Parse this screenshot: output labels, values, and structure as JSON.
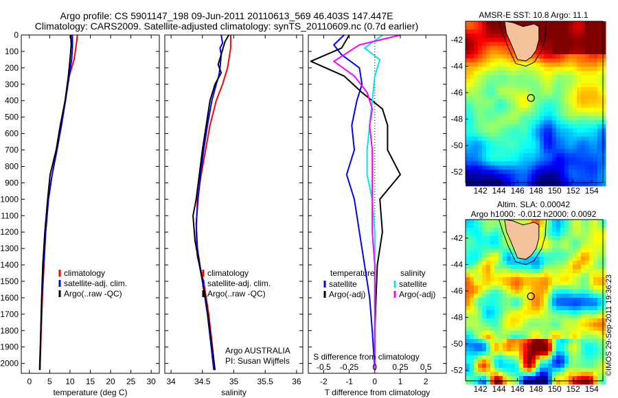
{
  "title_line1": "Argo profile: CS 5901147_198 09-Jun-2011 20110613_569 46.403S 147.447E",
  "title_line2": "Climatology: CARS2009. Satellite-adjusted climatology: synTS_20110609.nc (0.7d earlier)",
  "depth_ticks": [
    0,
    100,
    200,
    300,
    400,
    500,
    600,
    700,
    800,
    900,
    1000,
    1100,
    1200,
    1300,
    1400,
    1500,
    1600,
    1700,
    1800,
    1900,
    2000
  ],
  "chart_data": [
    {
      "type": "line",
      "id": "temperature",
      "xlabel": "temperature (deg C)",
      "ylabel": "",
      "xlim": [
        -2,
        32
      ],
      "ylim": [
        2060,
        0
      ],
      "xticks": [
        0,
        5,
        10,
        15,
        20,
        25,
        30
      ],
      "xtick_labels": [
        "0",
        "5",
        "10",
        "15",
        "20",
        "25",
        "30"
      ],
      "legend": [
        "climatology",
        "satellite-adj. clim.",
        "Argo(..raw -QC)"
      ],
      "series": [
        {
          "name": "climatology",
          "color": "#ff0000",
          "width": 2,
          "points": [
            [
              11.8,
              0
            ],
            [
              11.6,
              50
            ],
            [
              11.0,
              150
            ],
            [
              9.8,
              250
            ],
            [
              8.8,
              400
            ],
            [
              7.8,
              550
            ],
            [
              6.8,
              700
            ],
            [
              5.6,
              850
            ],
            [
              4.7,
              1000
            ],
            [
              4.0,
              1200
            ],
            [
              3.6,
              1400
            ],
            [
              3.2,
              1600
            ],
            [
              2.9,
              1800
            ],
            [
              2.6,
              2040
            ]
          ]
        },
        {
          "name": "satellite-adj. clim.",
          "color": "#0000ff",
          "width": 2,
          "points": [
            [
              10.6,
              0
            ],
            [
              10.6,
              80
            ],
            [
              10.4,
              150
            ],
            [
              9.8,
              250
            ],
            [
              8.9,
              400
            ],
            [
              7.9,
              550
            ],
            [
              6.8,
              700
            ],
            [
              5.6,
              850
            ],
            [
              4.7,
              1000
            ],
            [
              4.0,
              1200
            ],
            [
              3.5,
              1400
            ],
            [
              3.1,
              1600
            ],
            [
              2.8,
              1800
            ],
            [
              2.6,
              2040
            ]
          ]
        },
        {
          "name": "Argo(..raw -QC)",
          "color": "#000000",
          "width": 2,
          "points": [
            [
              10.2,
              0
            ],
            [
              10.3,
              60
            ],
            [
              10.0,
              150
            ],
            [
              9.6,
              250
            ],
            [
              8.8,
              400
            ],
            [
              7.6,
              550
            ],
            [
              6.6,
              700
            ],
            [
              5.1,
              850
            ],
            [
              4.5,
              1000
            ],
            [
              3.8,
              1200
            ],
            [
              3.3,
              1400
            ],
            [
              3.0,
              1600
            ],
            [
              2.8,
              1800
            ],
            [
              2.5,
              2040
            ]
          ]
        }
      ]
    },
    {
      "type": "line",
      "id": "salinity",
      "xlabel": "salinity",
      "ylabel": "",
      "xlim": [
        33.9,
        36.1
      ],
      "ylim": [
        2060,
        0
      ],
      "xticks": [
        34,
        34.5,
        35,
        35.5,
        36
      ],
      "xtick_labels": [
        "34",
        "34.5",
        "35",
        "35.5",
        "36"
      ],
      "legend": [
        "climatology",
        "satellite-adj. clim.",
        "Argo(..raw -QC)"
      ],
      "annotations": [
        "Argo AUSTRALIA",
        "PI: Susan Wijffels"
      ],
      "series": [
        {
          "name": "climatology",
          "color": "#ff0000",
          "width": 2,
          "points": [
            [
              34.95,
              0
            ],
            [
              34.95,
              80
            ],
            [
              34.9,
              200
            ],
            [
              34.82,
              300
            ],
            [
              34.72,
              400
            ],
            [
              34.62,
              550
            ],
            [
              34.55,
              700
            ],
            [
              34.48,
              850
            ],
            [
              34.42,
              1000
            ],
            [
              34.4,
              1200
            ],
            [
              34.42,
              1350
            ],
            [
              34.52,
              1500
            ],
            [
              34.6,
              1700
            ],
            [
              34.66,
              1900
            ],
            [
              34.7,
              2040
            ]
          ]
        },
        {
          "name": "satellite-adj. clim.",
          "color": "#0000ff",
          "width": 2,
          "points": [
            [
              34.8,
              0
            ],
            [
              34.82,
              50
            ],
            [
              34.78,
              80
            ],
            [
              34.8,
              120
            ],
            [
              34.78,
              200
            ],
            [
              34.76,
              250
            ],
            [
              34.72,
              300
            ],
            [
              34.65,
              400
            ],
            [
              34.58,
              550
            ],
            [
              34.52,
              700
            ],
            [
              34.47,
              850
            ],
            [
              34.43,
              1000
            ],
            [
              34.4,
              1150
            ],
            [
              34.42,
              1300
            ],
            [
              34.5,
              1500
            ],
            [
              34.58,
              1700
            ],
            [
              34.64,
              1900
            ],
            [
              34.68,
              2040
            ]
          ]
        },
        {
          "name": "Argo(..raw -QC)",
          "color": "#000000",
          "width": 2,
          "points": [
            [
              34.92,
              0
            ],
            [
              34.86,
              40
            ],
            [
              34.75,
              180
            ],
            [
              34.8,
              230
            ],
            [
              34.7,
              300
            ],
            [
              34.62,
              400
            ],
            [
              34.56,
              550
            ],
            [
              34.5,
              700
            ],
            [
              34.45,
              850
            ],
            [
              34.4,
              1000
            ],
            [
              34.35,
              1100
            ],
            [
              34.38,
              1250
            ],
            [
              34.45,
              1400
            ],
            [
              34.55,
              1600
            ],
            [
              34.62,
              1800
            ],
            [
              34.67,
              1950
            ],
            [
              34.7,
              2040
            ]
          ]
        }
      ]
    },
    {
      "type": "line",
      "id": "difference",
      "xlabel": "T difference from climatology",
      "xlabel2": "S difference from climatology",
      "ylabel": "",
      "xlim": [
        -2.6,
        2.8
      ],
      "ylim": [
        2060,
        0
      ],
      "xticks": [
        -2,
        -1,
        0,
        1,
        2
      ],
      "xtick_labels": [
        "-2",
        "-1",
        "0",
        "1",
        "2"
      ],
      "sticks": [
        -0.5,
        -0.25,
        0,
        0.25,
        0.5
      ],
      "stick_labels": [
        "-0.5",
        "-0.25",
        "0",
        "0.25",
        "0.5"
      ],
      "legend_headers": [
        "temperature",
        "salinity"
      ],
      "legend": [
        "satellite",
        "Argo(-adj)",
        "satellite",
        "Argo(-adj)"
      ],
      "series": [
        {
          "name": "satellite",
          "color": "#0000ff",
          "width": 2,
          "points": [
            [
              -1.2,
              0
            ],
            [
              -1.6,
              60
            ],
            [
              -1.3,
              120
            ],
            [
              -0.6,
              200
            ],
            [
              -0.5,
              300
            ],
            [
              -0.7,
              400
            ],
            [
              -0.9,
              550
            ],
            [
              -0.8,
              700
            ],
            [
              -1.1,
              850
            ],
            [
              -0.8,
              1000
            ],
            [
              -0.6,
              1200
            ],
            [
              -0.4,
              1400
            ],
            [
              -0.2,
              1600
            ],
            [
              -0.1,
              1800
            ],
            [
              0,
              2040
            ]
          ]
        },
        {
          "name": "Argo(-adj)",
          "color": "#000000",
          "width": 2,
          "points": [
            [
              -1.0,
              0
            ],
            [
              -1.3,
              80
            ],
            [
              -2.5,
              160
            ],
            [
              -1.2,
              250
            ],
            [
              -0.5,
              350
            ],
            [
              0.3,
              450
            ],
            [
              0.5,
              550
            ],
            [
              0.5,
              700
            ],
            [
              1.0,
              850
            ],
            [
              0.2,
              1000
            ],
            [
              0.3,
              1200
            ],
            [
              0.1,
              1400
            ],
            [
              0.05,
              1600
            ],
            [
              0,
              1800
            ],
            [
              0,
              2040
            ]
          ]
        },
        {
          "name": "satellite",
          "color": "#00e5ee",
          "width": 2,
          "points": [
            [
              0.3,
              0
            ],
            [
              -0.4,
              80
            ],
            [
              0.2,
              150
            ],
            [
              0,
              250
            ],
            [
              -0.1,
              400
            ],
            [
              -0.2,
              550
            ],
            [
              -0.3,
              700
            ],
            [
              -0.3,
              850
            ],
            [
              -0.1,
              1000
            ],
            [
              0,
              1200
            ],
            [
              0,
              1400
            ],
            [
              0,
              1600
            ],
            [
              0,
              1800
            ],
            [
              0,
              2040
            ]
          ]
        },
        {
          "name": "Argo(-adj)",
          "color": "#ff00ff",
          "width": 2,
          "points": [
            [
              1.0,
              0
            ],
            [
              -0.6,
              60
            ],
            [
              -1.6,
              160
            ],
            [
              -0.8,
              250
            ],
            [
              -0.3,
              350
            ],
            [
              -0.1,
              450
            ],
            [
              -0.2,
              550
            ],
            [
              -0.1,
              700
            ],
            [
              -0.1,
              850
            ],
            [
              -0.1,
              1000
            ],
            [
              -0.1,
              1200
            ],
            [
              0,
              1400
            ],
            [
              0,
              1600
            ],
            [
              0,
              1800
            ],
            [
              0,
              2040
            ]
          ]
        }
      ]
    },
    {
      "type": "heatmap",
      "id": "sst-map",
      "title": "AMSR-E SST: 10.8 Argo: 11.1",
      "xticks": [
        142,
        144,
        146,
        148,
        150,
        152,
        154
      ],
      "yticks": [
        -42,
        -44,
        -46,
        -48,
        -50,
        -52
      ],
      "xlim": [
        140.4,
        155.2
      ],
      "ylim": [
        -52.8,
        -40.6
      ],
      "marker": [
        147.447,
        -46.403
      ]
    },
    {
      "type": "heatmap",
      "id": "sla-map",
      "title_line1": "Altim. SLA: 0.00042",
      "title_line2": "Argo h1000: -0.012 h2000: 0.0092",
      "xticks": [
        142,
        144,
        146,
        148,
        150,
        152,
        154
      ],
      "yticks": [
        -42,
        -44,
        -46,
        -48,
        -50,
        -52
      ],
      "xlim": [
        140.4,
        155.2
      ],
      "ylim": [
        -52.8,
        -40.6
      ],
      "marker": [
        147.447,
        -46.403
      ]
    }
  ],
  "credit": "©IMOS 29-Sep-2011 19:36:23"
}
